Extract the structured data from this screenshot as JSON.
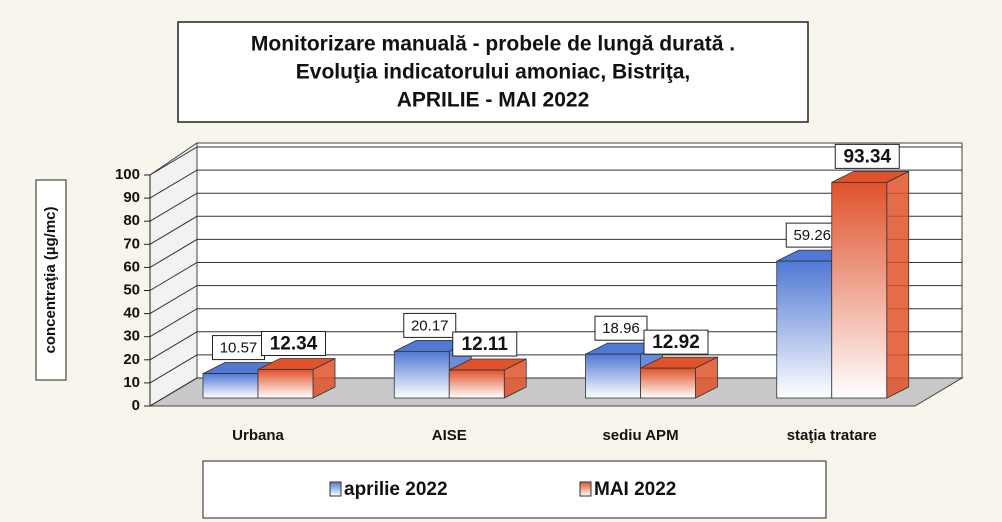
{
  "chart_data": {
    "type": "bar3d",
    "title": [
      "Monitorizare manuală - probele de lungă durată .",
      "Evoluţia indicatorului amoniac, Bistriţa,",
      "APRILIE - MAI 2022"
    ],
    "y_label": "concentraţia (µg/mc)",
    "categories": [
      "Urbana",
      "AISE",
      "sediu APM",
      "staţia tratare"
    ],
    "series": [
      {
        "name": "aprilie 2022",
        "color": "#4f79d4",
        "values": [
          10.57,
          20.17,
          18.96,
          59.26
        ]
      },
      {
        "name": "MAI 2022",
        "color": "#e0522b",
        "values": [
          12.34,
          12.11,
          12.92,
          93.34
        ]
      }
    ],
    "ylim": [
      0,
      100
    ],
    "yticks": [
      0,
      10,
      20,
      30,
      40,
      50,
      60,
      70,
      80,
      90,
      100
    ],
    "grid": true,
    "legend": "bottom"
  }
}
